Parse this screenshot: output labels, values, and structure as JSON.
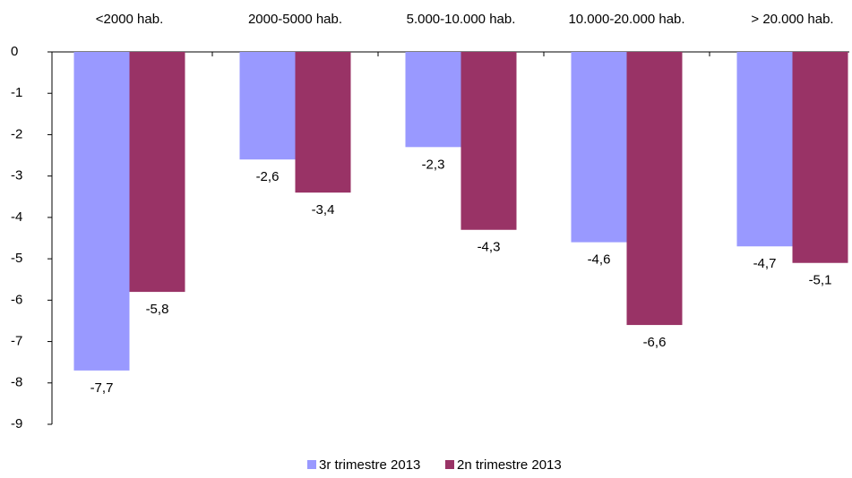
{
  "chart_data": {
    "type": "bar",
    "categories": [
      "<2000 hab.",
      "2000-5000 hab.",
      "5.000-10.000 hab.",
      "10.000-20.000 hab.",
      "> 20.000 hab."
    ],
    "series": [
      {
        "name": "3r trimestre 2013",
        "color": "#9999ff",
        "values": [
          -7.7,
          -2.6,
          -2.3,
          -4.6,
          -4.7
        ],
        "value_labels": [
          "-7,7",
          "-2,6",
          "-2,3",
          "-4,6",
          "-4,7"
        ]
      },
      {
        "name": "2n trimestre 2013",
        "color": "#993366",
        "values": [
          -5.8,
          -3.4,
          -4.3,
          -6.6,
          -5.1
        ],
        "value_labels": [
          "-5,8",
          "-3,4",
          "-4,3",
          "-6,6",
          "-5,1"
        ]
      }
    ],
    "ylim": [
      -9,
      0
    ],
    "yticks": [
      0,
      -1,
      -2,
      -3,
      -4,
      -5,
      -6,
      -7,
      -8,
      -9
    ],
    "legend": "bottom"
  }
}
